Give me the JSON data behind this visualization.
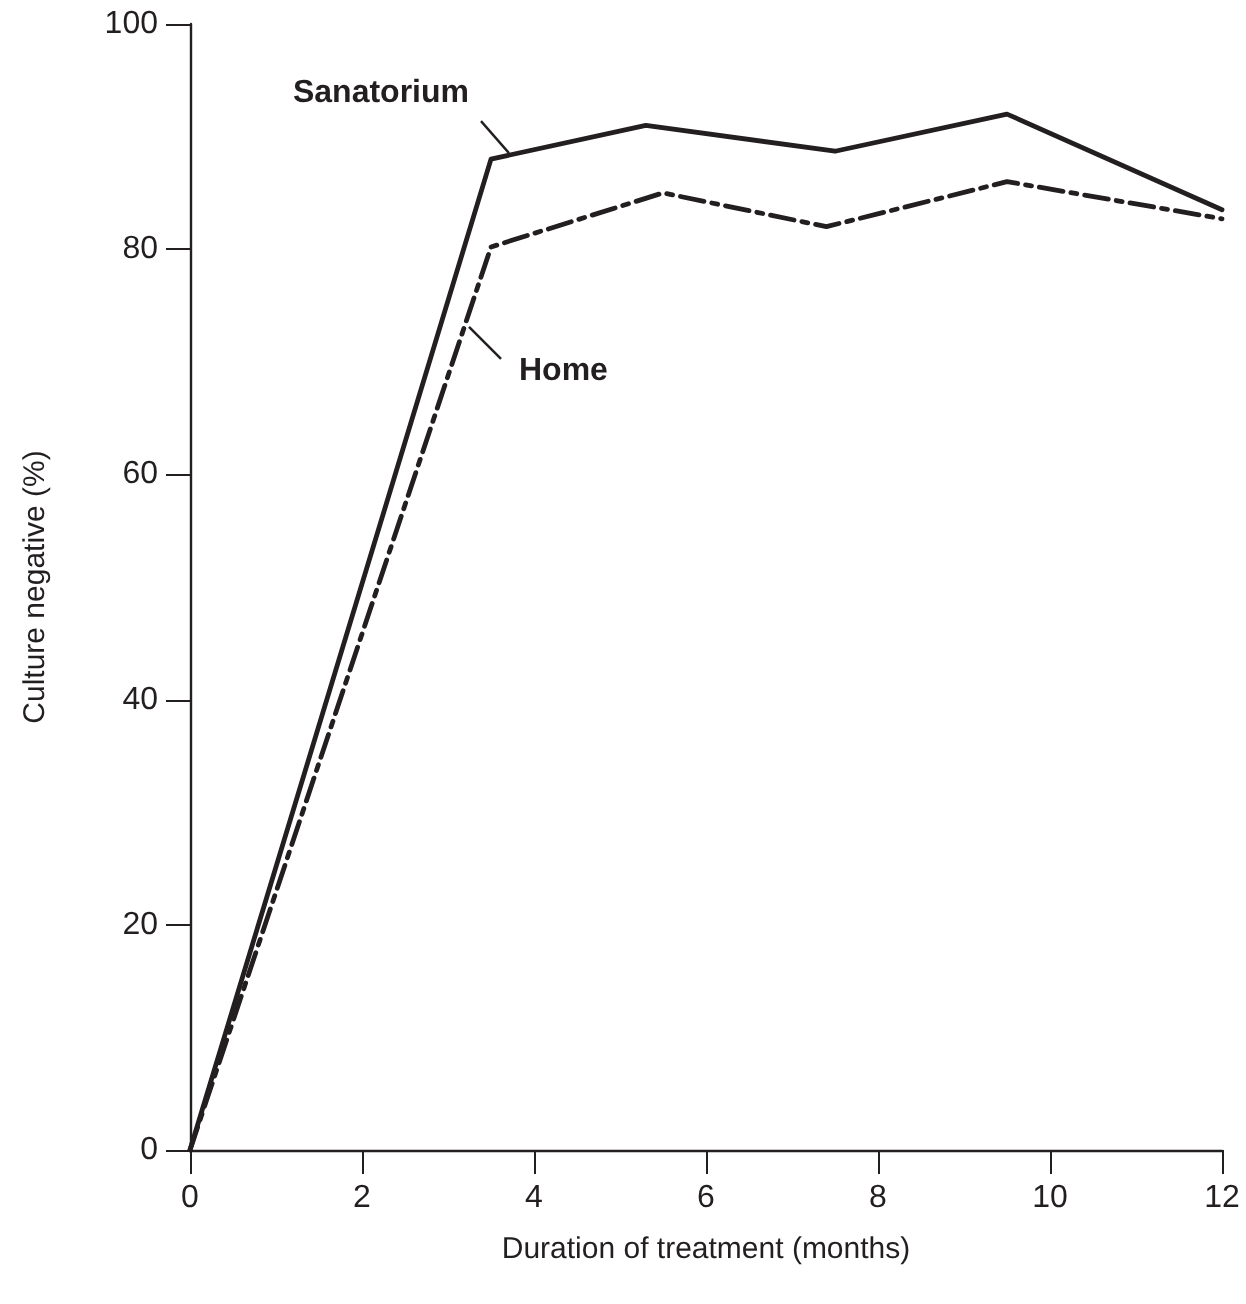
{
  "chart_data": {
    "type": "line",
    "xlabel": "Duration of treatment (months)",
    "ylabel": "Culture negative (%)",
    "xlim": [
      0,
      12
    ],
    "xticks": [
      0,
      2,
      4,
      6,
      8,
      10,
      12
    ],
    "ylim": [
      0,
      100
    ],
    "yticks": [
      0,
      20,
      40,
      60,
      80,
      100
    ],
    "grid": false,
    "legend": false,
    "marker": "none",
    "series": [
      {
        "name": "Sanatorium",
        "color": "#231f20",
        "line_style": "solid",
        "x": [
          0,
          3.5,
          5.3,
          7.5,
          9.5,
          12
        ],
        "values": [
          0,
          88,
          91,
          88.7,
          92,
          83.5
        ]
      },
      {
        "name": "Home",
        "color": "#231f20",
        "line_style": "dashed",
        "x": [
          0,
          3.5,
          5.5,
          7.4,
          9.5,
          12
        ],
        "values": [
          0,
          80.2,
          85,
          82,
          86,
          82.7
        ]
      }
    ]
  }
}
